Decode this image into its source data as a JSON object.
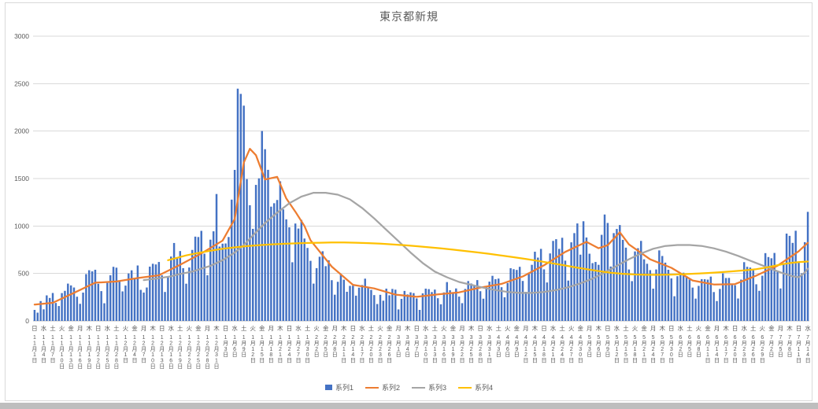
{
  "title": "東京都新規",
  "colors": {
    "series1_blue": "#4472C4",
    "series2_orange": "#ED7D31",
    "series3_gray": "#A5A5A5",
    "series4_yellow": "#FFC000",
    "gridline": "#D9D9D9",
    "axis_line": "#BFBFBF",
    "text": "#595959",
    "frame_border": "#D9D9D9",
    "bottom_strip": "#BEBEBE"
  },
  "legend": {
    "items": [
      "系列1",
      "系列2",
      "系列3",
      "系列4"
    ],
    "position": "bottom"
  },
  "chart_data": {
    "type": "combo-bar-line",
    "title": "東京都新規",
    "ylim": [
      0,
      3000
    ],
    "yticks": [
      0,
      500,
      1000,
      1500,
      2000,
      2500,
      3000
    ],
    "grid": true,
    "legend_position": "bottom",
    "x_axis": {
      "start_date": "11月1日",
      "end_date": "7月14日",
      "days_total": 256,
      "tick_interval_days": 3,
      "tick_weekdays": [
        "日",
        "水",
        "土",
        "火",
        "金",
        "月",
        "木",
        "日",
        "水",
        "土",
        "火",
        "金",
        "月",
        "木",
        "日",
        "水",
        "土",
        "火",
        "金",
        "月",
        "木",
        "日",
        "水",
        "土",
        "火",
        "金",
        "月",
        "木",
        "日",
        "水",
        "土",
        "火",
        "金",
        "月",
        "木",
        "日",
        "水",
        "土",
        "火",
        "金",
        "月",
        "木",
        "日",
        "水",
        "土",
        "火",
        "金",
        "月",
        "木",
        "日",
        "水",
        "土",
        "火",
        "金",
        "月",
        "木",
        "日",
        "水",
        "土",
        "火",
        "金",
        "月",
        "木",
        "日",
        "水",
        "土",
        "火",
        "金",
        "月",
        "木",
        "日",
        "水",
        "土",
        "火",
        "金",
        "月",
        "木",
        "日",
        "水",
        "土",
        "火",
        "金",
        "月",
        "木",
        "日",
        "水"
      ],
      "tick_dates": [
        "11月1日",
        "11月4日",
        "11月7日",
        "11月10日",
        "11月13日",
        "11月16日",
        "11月19日",
        "11月22日",
        "11月25日",
        "11月28日",
        "12月1日",
        "12月4日",
        "12月7日",
        "12月10日",
        "12月13日",
        "12月16日",
        "12月19日",
        "12月22日",
        "12月25日",
        "12月28日",
        "12月31日",
        "1月3日",
        "1月6日",
        "1月9日",
        "1月12日",
        "1月15日",
        "1月18日",
        "1月21日",
        "1月24日",
        "1月27日",
        "1月30日",
        "2月2日",
        "2月5日",
        "2月8日",
        "2月11日",
        "2月14日",
        "2月17日",
        "2月20日",
        "2月23日",
        "2月26日",
        "3月1日",
        "3月4日",
        "3月7日",
        "3月10日",
        "3月13日",
        "3月16日",
        "3月19日",
        "3月22日",
        "3月25日",
        "3月28日",
        "3月31日",
        "4月3日",
        "4月6日",
        "4月9日",
        "4月12日",
        "4月15日",
        "4月18日",
        "4月21日",
        "4月24日",
        "4月27日",
        "4月30日",
        "5月3日",
        "5月6日",
        "5月9日",
        "5月12日",
        "5月15日",
        "5月18日",
        "5月21日",
        "5月24日",
        "5月27日",
        "5月30日",
        "6月2日",
        "6月5日",
        "6月8日",
        "6月11日",
        "6月14日",
        "6月17日",
        "6月20日",
        "6月23日",
        "6月26日",
        "6月29日",
        "7月2日",
        "7月5日",
        "7月8日",
        "7月11日",
        "7月14日"
      ]
    },
    "series": [
      {
        "name": "系列1",
        "type": "bar",
        "color": "#4472C4",
        "values": [
          116,
          87,
          209,
          122,
          269,
          242,
          294,
          189,
          157,
          293,
          317,
          393,
          374,
          352,
          255,
          180,
          298,
          493,
          534,
          522,
          539,
          391,
          314,
          186,
          401,
          481,
          570,
          561,
          418,
          311,
          372,
          500,
          533,
          449,
          584,
          327,
          299,
          352,
          572,
          602,
          595,
          621,
          480,
          305,
          460,
          678,
          821,
          664,
          736,
          556,
          392,
          563,
          748,
          888,
          884,
          949,
          708,
          481,
          856,
          944,
          1337,
          783,
          814,
          816,
          884,
          1278,
          1591,
          2447,
          2392,
          2268,
          1494,
          1219,
          970,
          1433,
          1502,
          2001,
          1809,
          1592,
          1204,
          1240,
          1274,
          1471,
          1175,
          1070,
          986,
          618,
          1026,
          973,
          1064,
          868,
          769,
          633,
          393,
          556,
          676,
          734,
          577,
          639,
          429,
          276,
          412,
          491,
          434,
          307,
          369,
          371,
          266,
          350,
          378,
          445,
          353,
          327,
          272,
          178,
          275,
          213,
          340,
          270,
          337,
          329,
          121,
          232,
          316,
          279,
          301,
          293,
          237,
          116,
          290,
          340,
          335,
          304,
          330,
          239,
          175,
          300,
          409,
          323,
          303,
          342,
          256,
          187,
          337,
          420,
          394,
          376,
          430,
          313,
          234,
          364,
          414,
          475,
          440,
          446,
          355,
          249,
          399,
          555,
          545,
          537,
          570,
          421,
          306,
          510,
          591,
          729,
          667,
          759,
          543,
          405,
          711,
          843,
          861,
          759,
          876,
          635,
          425,
          828,
          925,
          1027,
          698,
          1050,
          879,
          708,
          609,
          621,
          591,
          907,
          1121,
          1032,
          573,
          925,
          969,
          1010,
          854,
          772,
          542,
          419,
          732,
          766,
          843,
          649,
          602,
          535,
          340,
          542,
          743,
          684,
          614,
          539,
          448,
          260,
          471,
          487,
          508,
          472,
          436,
          351,
          235,
          369,
          440,
          439,
          435,
          467,
          304,
          209,
          337,
          501,
          452,
          453,
          388,
          376,
          236,
          435,
          619,
          570,
          562,
          534,
          386,
          317,
          476,
          714,
          673,
          660,
          716,
          518,
          342,
          593,
          920,
          896,
          822,
          950,
          614,
          502,
          830,
          1149
        ]
      },
      {
        "name": "系列2",
        "type": "line",
        "color": "#ED7D31",
        "points": [
          [
            0,
            172
          ],
          [
            6,
            191
          ],
          [
            13,
            296
          ],
          [
            20,
            403
          ],
          [
            27,
            415
          ],
          [
            34,
            452
          ],
          [
            41,
            481
          ],
          [
            48,
            592
          ],
          [
            55,
            711
          ],
          [
            62,
            846
          ],
          [
            66,
            1072
          ],
          [
            69,
            1668
          ],
          [
            71,
            1813
          ],
          [
            73,
            1746
          ],
          [
            76,
            1490
          ],
          [
            80,
            1517
          ],
          [
            83,
            1290
          ],
          [
            86,
            1150
          ],
          [
            89,
            1000
          ],
          [
            91,
            850
          ],
          [
            98,
            572
          ],
          [
            105,
            380
          ],
          [
            112,
            342
          ],
          [
            119,
            277
          ],
          [
            126,
            254
          ],
          [
            133,
            279
          ],
          [
            140,
            301
          ],
          [
            147,
            351
          ],
          [
            154,
            390
          ],
          [
            161,
            468
          ],
          [
            168,
            586
          ],
          [
            175,
            727
          ],
          [
            182,
            833
          ],
          [
            186,
            766
          ],
          [
            189,
            798
          ],
          [
            193,
            934
          ],
          [
            196,
            806
          ],
          [
            203,
            649
          ],
          [
            210,
            559
          ],
          [
            217,
            426
          ],
          [
            224,
            384
          ],
          [
            231,
            388
          ],
          [
            238,
            477
          ],
          [
            245,
            582
          ],
          [
            252,
            734
          ],
          [
            255,
            823
          ]
        ]
      },
      {
        "name": "系列3",
        "type": "line",
        "color": "#A5A5A5",
        "points": [
          [
            36,
            430
          ],
          [
            41,
            450
          ],
          [
            45,
            470
          ],
          [
            48,
            495
          ],
          [
            52,
            520
          ],
          [
            55,
            550
          ],
          [
            58,
            580
          ],
          [
            62,
            640
          ],
          [
            66,
            720
          ],
          [
            69,
            800
          ],
          [
            72,
            900
          ],
          [
            76,
            1030
          ],
          [
            80,
            1140
          ],
          [
            84,
            1240
          ],
          [
            88,
            1310
          ],
          [
            92,
            1350
          ],
          [
            96,
            1350
          ],
          [
            100,
            1330
          ],
          [
            104,
            1280
          ],
          [
            108,
            1190
          ],
          [
            112,
            1080
          ],
          [
            116,
            960
          ],
          [
            120,
            840
          ],
          [
            124,
            720
          ],
          [
            128,
            610
          ],
          [
            132,
            520
          ],
          [
            136,
            460
          ],
          [
            140,
            410
          ],
          [
            144,
            380
          ],
          [
            148,
            350
          ],
          [
            152,
            325
          ],
          [
            156,
            305
          ],
          [
            160,
            295
          ],
          [
            164,
            295
          ],
          [
            168,
            305
          ],
          [
            172,
            325
          ],
          [
            176,
            355
          ],
          [
            180,
            395
          ],
          [
            184,
            445
          ],
          [
            188,
            510
          ],
          [
            192,
            580
          ],
          [
            196,
            650
          ],
          [
            200,
            710
          ],
          [
            204,
            760
          ],
          [
            208,
            790
          ],
          [
            212,
            800
          ],
          [
            216,
            800
          ],
          [
            220,
            790
          ],
          [
            224,
            765
          ],
          [
            228,
            730
          ],
          [
            232,
            685
          ],
          [
            236,
            635
          ],
          [
            240,
            585
          ],
          [
            244,
            535
          ],
          [
            247,
            500
          ],
          [
            250,
            470
          ],
          [
            252,
            460
          ],
          [
            254,
            510
          ],
          [
            255,
            550
          ]
        ]
      },
      {
        "name": "系列4",
        "type": "line",
        "color": "#FFC000",
        "points": [
          [
            44,
            640
          ],
          [
            47,
            665
          ],
          [
            50,
            690
          ],
          [
            53,
            710
          ],
          [
            56,
            728
          ],
          [
            59,
            745
          ],
          [
            62,
            760
          ],
          [
            66,
            775
          ],
          [
            70,
            788
          ],
          [
            74,
            798
          ],
          [
            78,
            806
          ],
          [
            82,
            812
          ],
          [
            86,
            817
          ],
          [
            90,
            821
          ],
          [
            94,
            824
          ],
          [
            98,
            826
          ],
          [
            102,
            826
          ],
          [
            106,
            824
          ],
          [
            110,
            820
          ],
          [
            114,
            814
          ],
          [
            118,
            806
          ],
          [
            122,
            797
          ],
          [
            126,
            787
          ],
          [
            130,
            776
          ],
          [
            134,
            764
          ],
          [
            138,
            751
          ],
          [
            142,
            737
          ],
          [
            146,
            722
          ],
          [
            150,
            706
          ],
          [
            154,
            689
          ],
          [
            158,
            671
          ],
          [
            162,
            652
          ],
          [
            166,
            632
          ],
          [
            170,
            611
          ],
          [
            174,
            589
          ],
          [
            178,
            567
          ],
          [
            182,
            545
          ],
          [
            186,
            525
          ],
          [
            190,
            508
          ],
          [
            194,
            496
          ],
          [
            198,
            489
          ],
          [
            202,
            486
          ],
          [
            206,
            486
          ],
          [
            210,
            488
          ],
          [
            214,
            492
          ],
          [
            218,
            498
          ],
          [
            222,
            505
          ],
          [
            226,
            513
          ],
          [
            230,
            522
          ],
          [
            234,
            532
          ],
          [
            238,
            545
          ],
          [
            241,
            560
          ],
          [
            244,
            580
          ],
          [
            247,
            600
          ],
          [
            250,
            613
          ],
          [
            252,
            620
          ],
          [
            254,
            624
          ],
          [
            255,
            626
          ]
        ]
      }
    ]
  }
}
